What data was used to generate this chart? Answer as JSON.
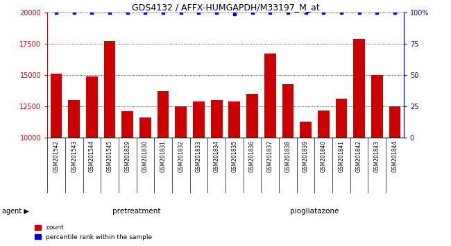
{
  "title": "GDS4132 / AFFX-HUMGAPDH/M33197_M_at",
  "samples": [
    "GSM201542",
    "GSM201543",
    "GSM201544",
    "GSM201545",
    "GSM201829",
    "GSM201830",
    "GSM201831",
    "GSM201832",
    "GSM201833",
    "GSM201834",
    "GSM201835",
    "GSM201836",
    "GSM201837",
    "GSM201838",
    "GSM201839",
    "GSM201840",
    "GSM201841",
    "GSM201842",
    "GSM201843",
    "GSM201844"
  ],
  "counts": [
    15100,
    13000,
    14900,
    17700,
    12100,
    11600,
    13700,
    12500,
    12900,
    13000,
    12900,
    13500,
    16700,
    14300,
    11300,
    12200,
    13100,
    17900,
    15000,
    12500
  ],
  "percentiles": [
    100,
    100,
    100,
    100,
    100,
    100,
    100,
    100,
    100,
    100,
    99,
    100,
    100,
    100,
    100,
    100,
    100,
    100,
    100,
    100
  ],
  "ylim_left": [
    10000,
    20000
  ],
  "ylim_right": [
    0,
    100
  ],
  "yticks_left": [
    10000,
    12500,
    15000,
    17500,
    20000
  ],
  "yticks_right": [
    0,
    25,
    50,
    75,
    100
  ],
  "bar_color": "#cc0000",
  "dot_color": "#0000cc",
  "pretreatment_color": "#99ee99",
  "piogliatazone_color": "#55dd55",
  "agent_bar_color": "#222222",
  "left_axis_color": "#cc0000",
  "right_axis_color": "#0000cc",
  "xtick_bg_color": "#cccccc",
  "plot_bg_color": "#ffffff",
  "n_pretreatment": 10,
  "n_piogliatazone": 10,
  "label_pretreatment": "pretreatment",
  "label_piogliatazone": "piogliatazone",
  "label_agent": "agent",
  "legend_count": "count",
  "legend_percentile": "percentile rank within the sample"
}
